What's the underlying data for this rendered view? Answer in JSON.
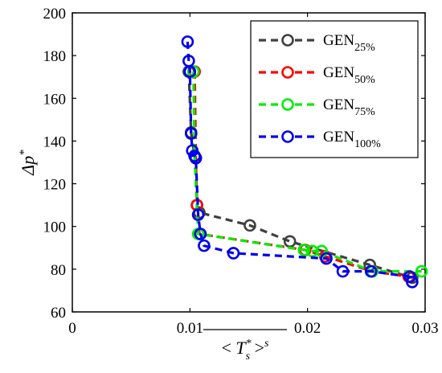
{
  "chart_data": {
    "type": "line",
    "title": "",
    "xlabel": "< T_s* >^s",
    "ylabel": "Δp*",
    "xlim": [
      0,
      0.03
    ],
    "ylim": [
      60,
      200
    ],
    "xticks": [
      "0",
      "0.01",
      "0.02",
      "0.03"
    ],
    "yticks": [
      "60",
      "80",
      "100",
      "120",
      "140",
      "160",
      "180",
      "200"
    ],
    "grid": false,
    "legend_position": "top-right",
    "series": [
      {
        "name": "GEN25%",
        "label_main": "GEN",
        "label_sub": "25%",
        "color": "#404040",
        "points": [
          [
            0.0099,
            172.5
          ],
          [
            0.0101,
            144
          ],
          [
            0.0104,
            133
          ],
          [
            0.0106,
            110
          ],
          [
            0.0108,
            106.5
          ],
          [
            0.0151,
            100.5
          ],
          [
            0.0185,
            93
          ],
          [
            0.0253,
            82
          ],
          [
            0.0289,
            76
          ]
        ]
      },
      {
        "name": "GEN50%",
        "label_main": "GEN",
        "label_sub": "50%",
        "color": "#ff0000",
        "points": [
          [
            0.0104,
            172.5
          ],
          [
            0.0105,
            132
          ],
          [
            0.0106,
            110
          ],
          [
            0.0108,
            96.5
          ],
          [
            0.0198,
            89
          ],
          [
            0.0215,
            86
          ],
          [
            0.0255,
            79
          ],
          [
            0.0286,
            76.5
          ]
        ]
      },
      {
        "name": "GEN75%",
        "label_main": "GEN",
        "label_sub": "75%",
        "color": "#00ee00",
        "points": [
          [
            0.0103,
            172.5
          ],
          [
            0.0104,
            133
          ],
          [
            0.0107,
            96.5
          ],
          [
            0.0197,
            89
          ],
          [
            0.0204,
            88.5
          ],
          [
            0.0212,
            88.5
          ],
          [
            0.0255,
            79
          ],
          [
            0.0297,
            79
          ]
        ]
      },
      {
        "name": "GEN100%",
        "label_main": "GEN",
        "label_sub": "100%",
        "color": "#0000ee",
        "points": [
          [
            0.0098,
            186.5
          ],
          [
            0.0099,
            177.5
          ],
          [
            0.01,
            172.5
          ],
          [
            0.0101,
            143.5
          ],
          [
            0.0102,
            135.5
          ],
          [
            0.0104,
            133
          ],
          [
            0.0105,
            132
          ],
          [
            0.0107,
            105.5
          ],
          [
            0.0109,
            96.5
          ],
          [
            0.0112,
            91
          ],
          [
            0.0137,
            87.5
          ],
          [
            0.0216,
            85
          ],
          [
            0.023,
            79
          ],
          [
            0.0254,
            79
          ],
          [
            0.0287,
            76.5
          ],
          [
            0.0289,
            74
          ]
        ]
      }
    ]
  }
}
